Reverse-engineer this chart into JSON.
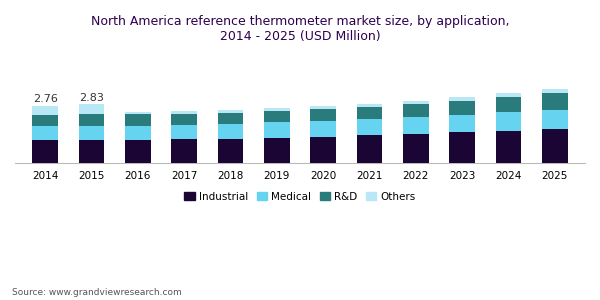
{
  "title": "North America reference thermometer market size, by application,\n2014 - 2025 (USD Million)",
  "years": [
    2014,
    2015,
    2016,
    2017,
    2018,
    2019,
    2020,
    2021,
    2022,
    2023,
    2024,
    2025
  ],
  "categories": [
    "Industrial",
    "Medical",
    "R&D",
    "Others"
  ],
  "colors": [
    "#1a0535",
    "#66d4f0",
    "#2a7b7b",
    "#b8e8f5"
  ],
  "data": {
    "Industrial": [
      1.1,
      1.1,
      1.12,
      1.15,
      1.18,
      1.22,
      1.27,
      1.33,
      1.4,
      1.48,
      1.55,
      1.63
    ],
    "Medical": [
      0.7,
      0.68,
      0.68,
      0.68,
      0.7,
      0.73,
      0.77,
      0.8,
      0.83,
      0.83,
      0.88,
      0.93
    ],
    "R&D": [
      0.52,
      0.57,
      0.54,
      0.54,
      0.54,
      0.54,
      0.54,
      0.57,
      0.6,
      0.68,
      0.73,
      0.8
    ],
    "Others": [
      0.44,
      0.48,
      0.12,
      0.12,
      0.12,
      0.13,
      0.14,
      0.15,
      0.16,
      0.17,
      0.18,
      0.19
    ]
  },
  "annotations": {
    "2014": "2.76",
    "2015": "2.83"
  },
  "source_text": "Source: www.grandviewresearch.com",
  "bar_width": 0.55,
  "ylim": [
    0,
    5.5
  ],
  "background_color": "#ffffff",
  "title_color": "#2d0050",
  "title_fontsize": 9.0,
  "legend_fontsize": 7.5,
  "tick_fontsize": 7.5,
  "annotation_fontsize": 8
}
